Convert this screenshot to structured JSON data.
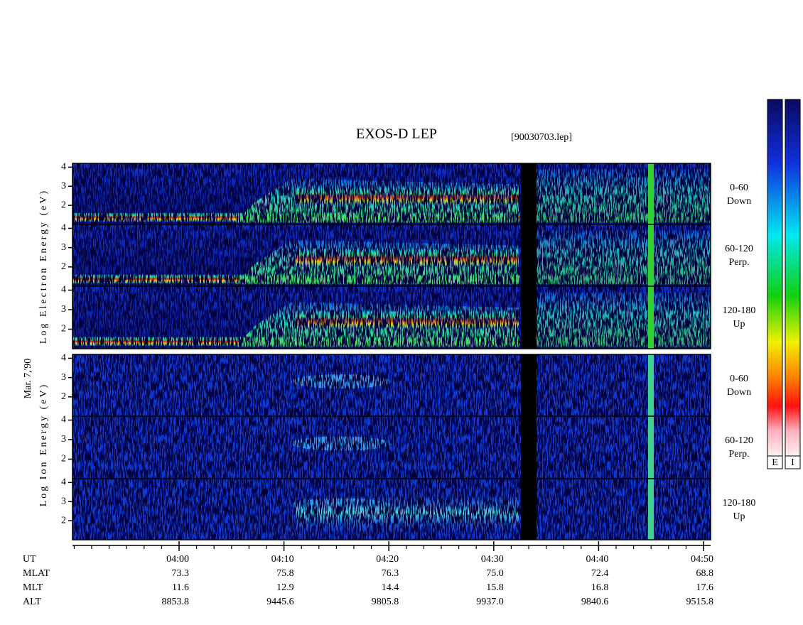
{
  "title": "EXOS-D LEP",
  "file": "[90030703.lep]",
  "date_label": "Mar. 7,'90",
  "electron_axis_label": "Log Electron Energy (eV)",
  "ion_axis_label": "Log Ion Energy (eV)",
  "ylim": [
    1,
    4.2
  ],
  "yticks": [
    2,
    3,
    4
  ],
  "panel_labels": [
    [
      "0-60",
      "Down"
    ],
    [
      "60-120",
      "Perp."
    ],
    [
      "120-180",
      "Up"
    ]
  ],
  "colorbar_labels": [
    "E",
    "I"
  ],
  "row_labels": [
    "UT",
    "MLAT",
    "MLT",
    "ALT"
  ],
  "columns": [
    [
      "04:00",
      "73.3",
      "11.6",
      "8853.8"
    ],
    [
      "04:10",
      "75.8",
      "12.9",
      "9445.6"
    ],
    [
      "04:20",
      "76.3",
      "14.4",
      "9805.8"
    ],
    [
      "04:30",
      "75.0",
      "15.8",
      "9937.0"
    ],
    [
      "04:40",
      "72.4",
      "16.8",
      "9840.6"
    ],
    [
      "04:50",
      "68.8",
      "17.6",
      "9515.8"
    ]
  ]
}
